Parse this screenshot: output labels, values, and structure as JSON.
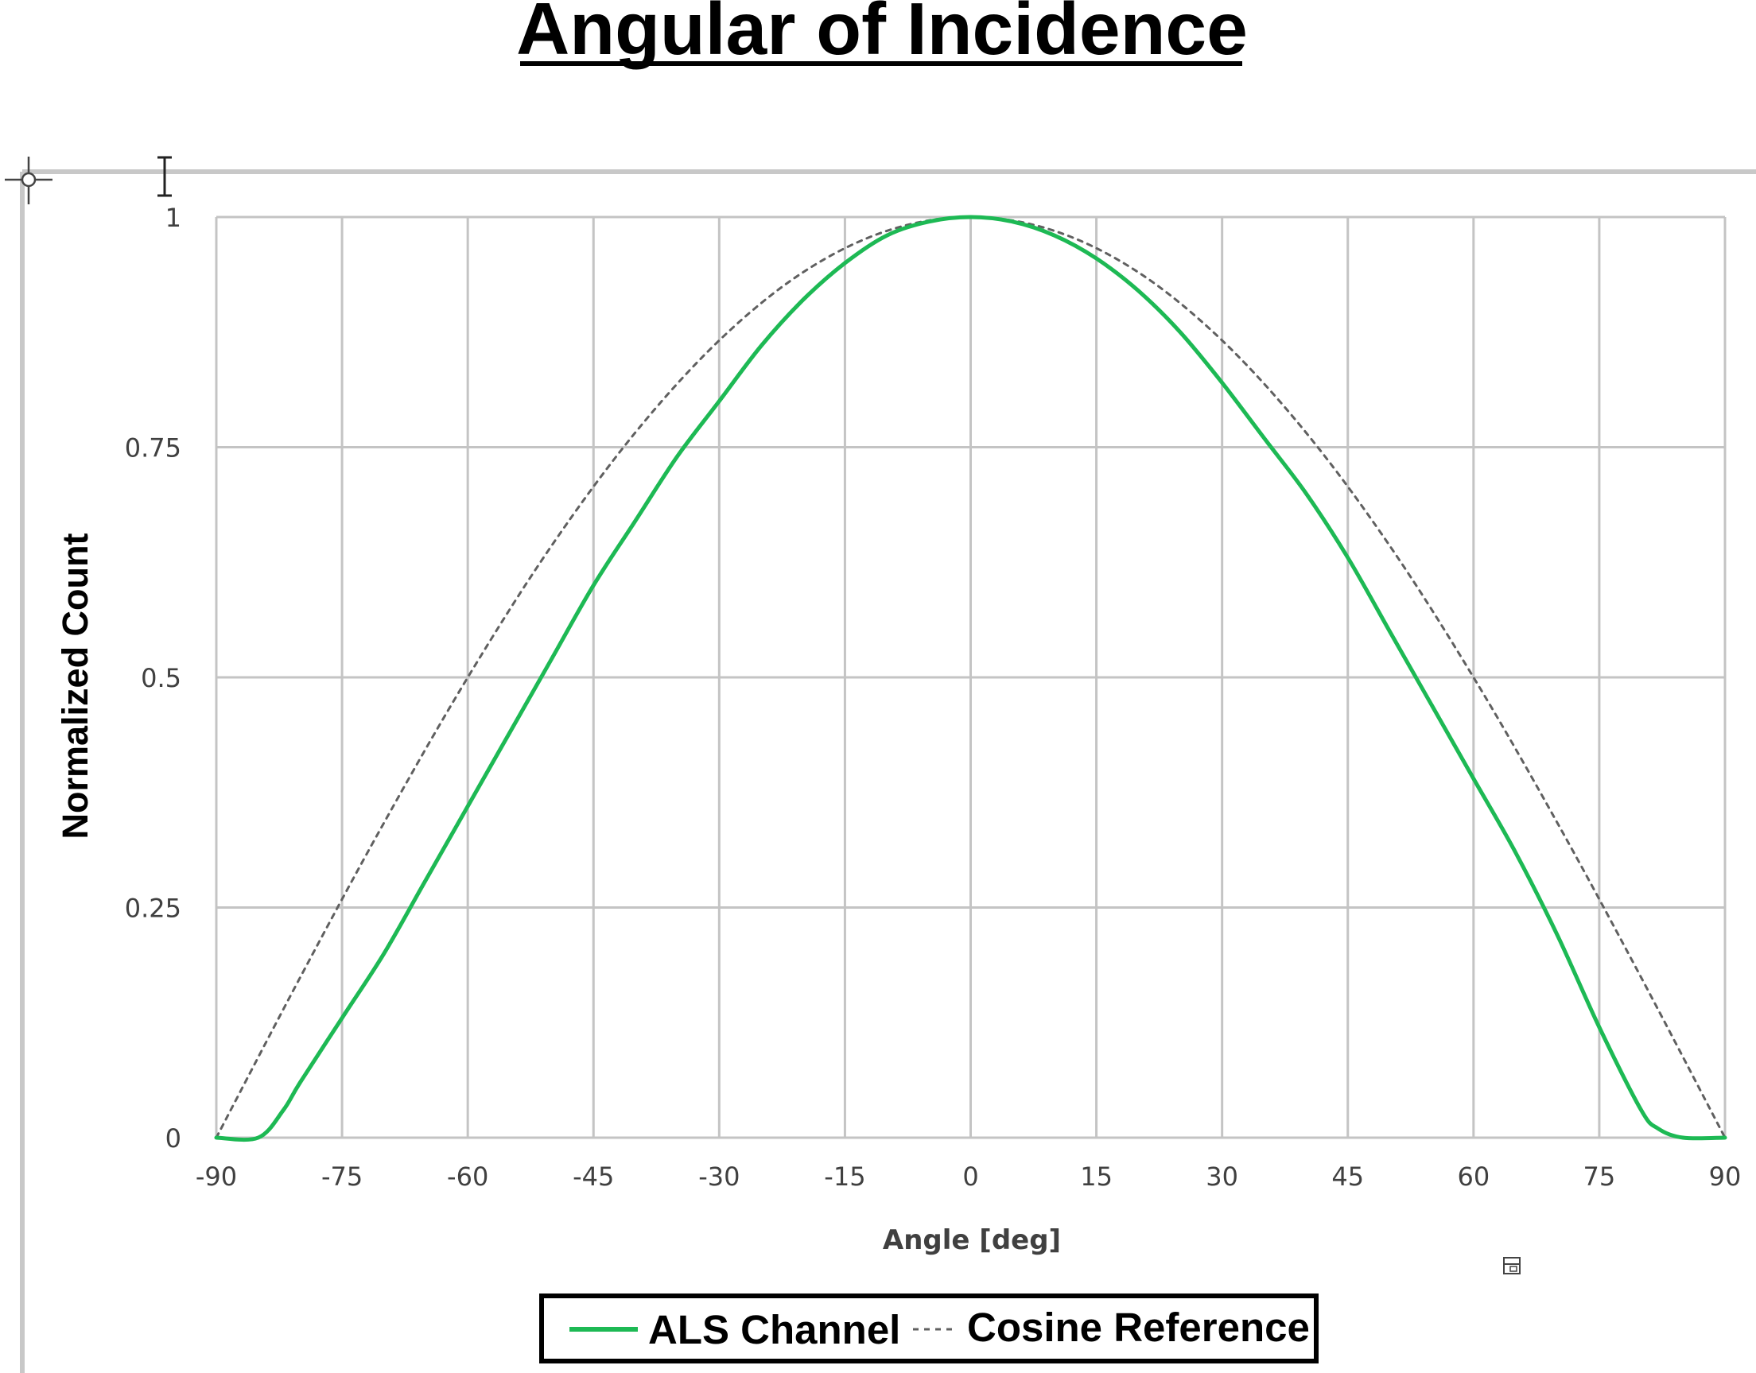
{
  "document": {
    "title": "Angular of Incidence"
  },
  "chart_data": {
    "type": "line",
    "title": "",
    "xlabel": "Angle [deg]",
    "ylabel": "Normalized Count",
    "xlim": [
      -90,
      90
    ],
    "ylim": [
      0,
      1
    ],
    "x_ticks": [
      -90,
      -75,
      -60,
      -45,
      -30,
      -15,
      0,
      15,
      30,
      45,
      60,
      75,
      90
    ],
    "y_ticks": [
      0,
      0.25,
      0.5,
      0.75,
      1
    ],
    "y_tick_labels": [
      "0",
      "0.25",
      "0.5",
      "0.75",
      "1"
    ],
    "grid": true,
    "legend_position": "bottom",
    "series": [
      {
        "name": "ALS Channel",
        "color": "#1db954",
        "style": "solid",
        "x": [
          -90,
          -85,
          -82,
          -80,
          -75,
          -70,
          -65,
          -60,
          -55,
          -50,
          -45,
          -40,
          -35,
          -30,
          -25,
          -20,
          -15,
          -10,
          -5,
          0,
          5,
          10,
          15,
          20,
          25,
          30,
          35,
          40,
          45,
          50,
          55,
          60,
          65,
          70,
          75,
          80,
          82,
          85,
          90
        ],
        "y": [
          0,
          0,
          0.03,
          0.06,
          0.13,
          0.2,
          0.28,
          0.36,
          0.44,
          0.52,
          0.6,
          0.67,
          0.74,
          0.8,
          0.86,
          0.91,
          0.95,
          0.98,
          0.995,
          1,
          0.995,
          0.98,
          0.955,
          0.92,
          0.875,
          0.82,
          0.76,
          0.7,
          0.63,
          0.55,
          0.47,
          0.39,
          0.31,
          0.22,
          0.12,
          0.03,
          0.01,
          0,
          0
        ]
      },
      {
        "name": "Cosine Reference",
        "color": "#606060",
        "style": "dashed",
        "x": [
          -90,
          -80,
          -70,
          -60,
          -50,
          -40,
          -30,
          -20,
          -10,
          0,
          10,
          20,
          30,
          40,
          50,
          60,
          70,
          80,
          90
        ],
        "y": [
          0,
          0.174,
          0.342,
          0.5,
          0.643,
          0.766,
          0.866,
          0.94,
          0.985,
          1,
          0.985,
          0.94,
          0.866,
          0.766,
          0.643,
          0.5,
          0.342,
          0.174,
          0
        ]
      }
    ]
  },
  "icons": {
    "cursor": "text-cursor-icon",
    "move_handle": "move-handle-icon",
    "layout_options": "layout-options-icon"
  }
}
